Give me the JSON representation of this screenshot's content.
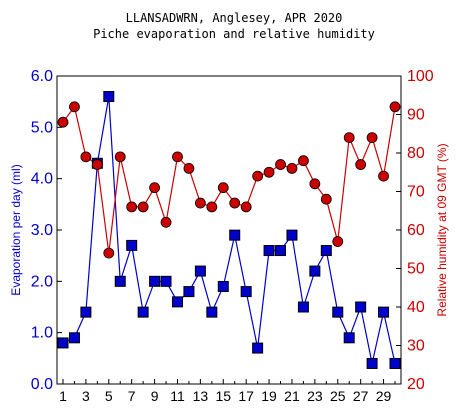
{
  "chart_data": {
    "type": "line",
    "title": "LLANSADWRN, Anglesey, APR 2020",
    "subtitle": "Piche evaporation and relative humidity",
    "xlabel": "",
    "x": [
      1,
      2,
      3,
      4,
      5,
      6,
      7,
      8,
      9,
      10,
      11,
      12,
      13,
      14,
      15,
      16,
      17,
      18,
      19,
      20,
      21,
      22,
      23,
      24,
      25,
      26,
      27,
      28,
      29,
      30
    ],
    "x_tick_labels": [
      "1",
      "3",
      "5",
      "7",
      "9",
      "11",
      "13",
      "15",
      "17",
      "19",
      "21",
      "23",
      "25",
      "27",
      "29"
    ],
    "y_left": {
      "label": "Evaporation per day (ml)",
      "ylim": [
        0.0,
        6.0
      ],
      "tick_labels": [
        "0.0",
        "1.0",
        "2.0",
        "3.0",
        "4.0",
        "5.0",
        "6.0"
      ],
      "color": "#0000cc"
    },
    "y_right": {
      "label": "Relative humidity at 09 GMT (%)",
      "ylim": [
        20,
        100
      ],
      "tick_labels": [
        "20",
        "30",
        "40",
        "50",
        "60",
        "70",
        "80",
        "90",
        "100"
      ],
      "color": "#cc0000"
    },
    "series": [
      {
        "axis": "left",
        "marker": "square",
        "color": "#0000cc",
        "values": [
          0.8,
          0.9,
          1.4,
          4.3,
          5.6,
          2.0,
          2.7,
          1.4,
          2.0,
          2.0,
          1.6,
          1.8,
          2.2,
          1.4,
          1.9,
          2.9,
          1.8,
          0.7,
          2.6,
          2.6,
          2.9,
          1.5,
          2.2,
          2.6,
          1.4,
          0.9,
          1.5,
          0.4,
          1.4,
          0.4
        ]
      },
      {
        "axis": "right",
        "marker": "circle",
        "color": "#cc0000",
        "values": [
          88,
          92,
          79,
          77,
          54,
          79,
          66,
          66,
          71,
          62,
          79,
          76,
          67,
          66,
          71,
          67,
          66,
          74,
          75,
          77,
          76,
          78,
          72,
          68,
          57,
          84,
          77,
          84,
          74,
          92
        ]
      }
    ],
    "grid": false,
    "colors": {
      "axis": "#000000",
      "line_left": "#0000cc",
      "line_right": "#cc0000",
      "marker_edge": "#000000"
    }
  }
}
